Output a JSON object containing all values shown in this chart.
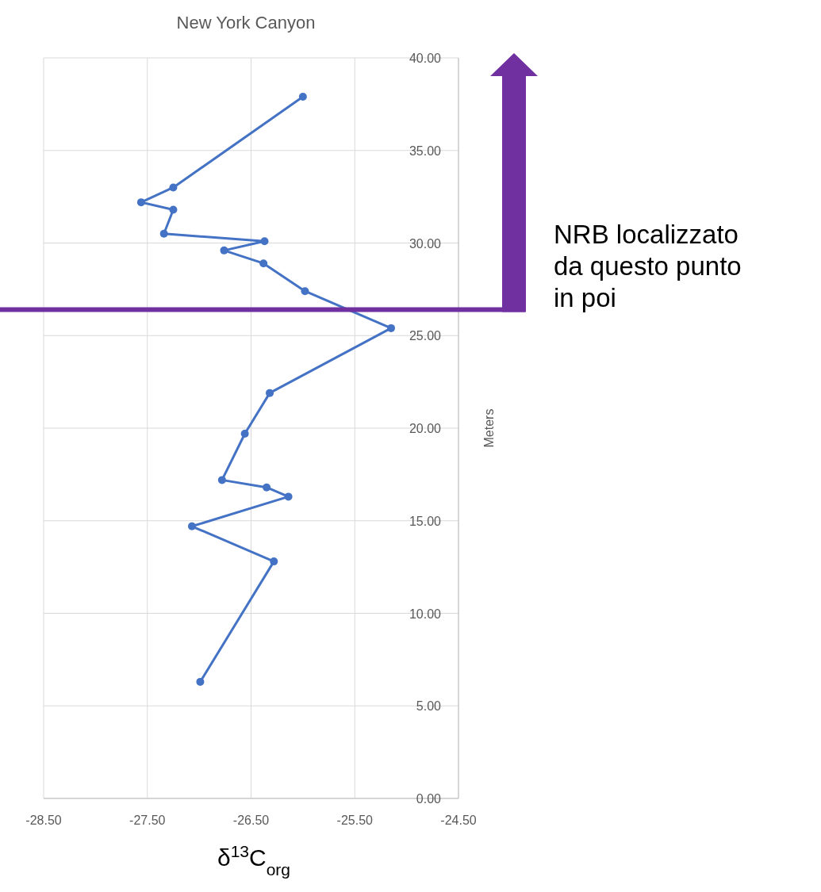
{
  "chart_data": {
    "type": "line",
    "title": "New York Canyon",
    "xlabel": "δ$^{13}$C$_{org}$",
    "ylabel": "Meters",
    "xlim": [
      -28.5,
      -24.5
    ],
    "ylim": [
      0,
      40
    ],
    "xticks": [
      {
        "value": -28.5,
        "label": "-28.50"
      },
      {
        "value": -27.5,
        "label": "-27.50"
      },
      {
        "value": -26.5,
        "label": "-26.50"
      },
      {
        "value": -25.5,
        "label": "-25.50"
      },
      {
        "value": -24.5,
        "label": "-24.50"
      }
    ],
    "yticks": [
      {
        "value": 0,
        "label": "0.00"
      },
      {
        "value": 5,
        "label": "5.00"
      },
      {
        "value": 10,
        "label": "10.00"
      },
      {
        "value": 15,
        "label": "15.00"
      },
      {
        "value": 20,
        "label": "20.00"
      },
      {
        "value": 25,
        "label": "25.00"
      },
      {
        "value": 30,
        "label": "30.00"
      },
      {
        "value": 35,
        "label": "35.00"
      },
      {
        "value": 40,
        "label": "40.00"
      }
    ],
    "grid": true,
    "marker": "circle",
    "line_style": "solid",
    "series": [
      {
        "color": "#4472c4",
        "x": [
          -26.0,
          -27.25,
          -27.56,
          -27.25,
          -27.34,
          -26.37,
          -26.76,
          -26.38,
          -25.98,
          -25.15,
          -26.32,
          -26.56,
          -26.78,
          -26.35,
          -26.14,
          -27.07,
          -26.28,
          -26.99
        ],
        "values": [
          37.9,
          33.0,
          32.2,
          31.8,
          30.5,
          30.1,
          29.6,
          28.9,
          27.4,
          25.4,
          21.9,
          19.7,
          17.2,
          16.8,
          16.3,
          14.7,
          12.8,
          6.3
        ]
      }
    ],
    "ref_lines": [
      {
        "axis": "y",
        "value": 26.4,
        "color": "#7030a0",
        "line_style": "solid"
      }
    ],
    "annotations": [
      "NRB localizzato da questo punto in poi"
    ]
  }
}
